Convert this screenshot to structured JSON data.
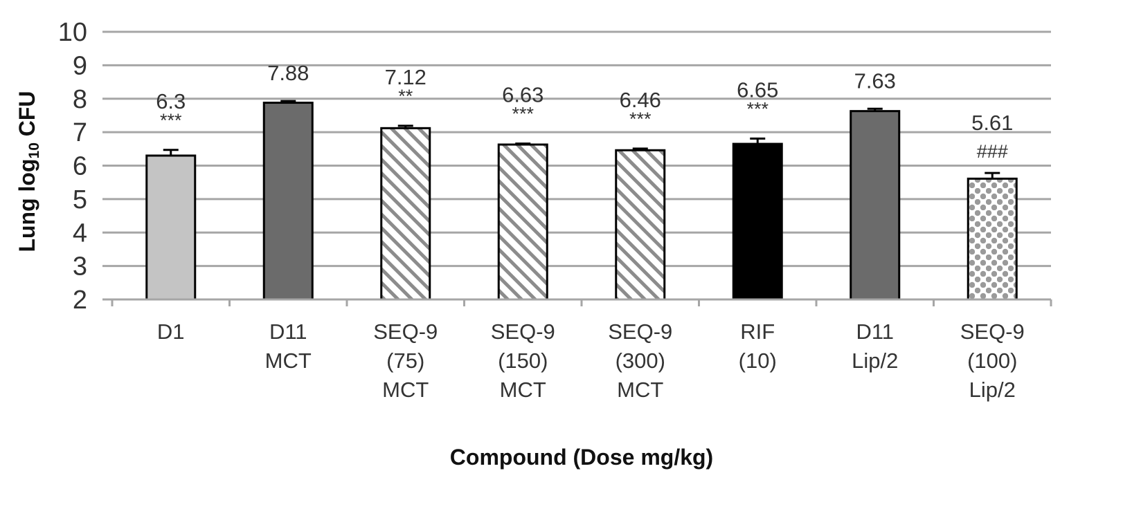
{
  "chart_data": {
    "type": "bar",
    "xlabel": "Compound (Dose mg/kg)",
    "ylabel": {
      "prefix": "Lung log",
      "subscript": "10",
      "suffix": " CFU"
    },
    "ylim": [
      2,
      10
    ],
    "yticks": [
      "2",
      "3",
      "4",
      "5",
      "6",
      "7",
      "8",
      "9",
      "10"
    ],
    "grid": true,
    "categories": [
      [
        "D1"
      ],
      [
        "D11",
        "MCT"
      ],
      [
        "SEQ-9",
        "(75)",
        "MCT"
      ],
      [
        "SEQ-9",
        "(150)",
        "MCT"
      ],
      [
        "SEQ-9",
        "(300)",
        "MCT"
      ],
      [
        "RIF",
        "(10)"
      ],
      [
        "D11",
        "Lip/2"
      ],
      [
        "SEQ-9",
        "(100)",
        "Lip/2"
      ]
    ],
    "values": [
      6.3,
      7.88,
      7.12,
      6.63,
      6.46,
      6.65,
      7.63,
      5.61
    ],
    "value_labels": [
      "6.3",
      "7.88",
      "7.12",
      "6.63",
      "6.46",
      "6.65",
      "7.63",
      "5.61"
    ],
    "errors": [
      0.17,
      0.05,
      0.07,
      0.03,
      0.05,
      0.16,
      0.07,
      0.17
    ],
    "significance": [
      "***",
      "",
      "**",
      "***",
      "***",
      "***",
      "",
      "###"
    ],
    "bar_styles": [
      "light-gray",
      "dark-gray",
      "hatched",
      "hatched",
      "hatched",
      "black",
      "dark-gray",
      "dotted"
    ],
    "colors": {
      "light_gray": "#c4c4c4",
      "dark_gray": "#6b6b6b",
      "black": "#000000",
      "hatch": "#8c8c8c",
      "dots": "#9a9a9a",
      "gridline": "#a6a6a6"
    }
  }
}
